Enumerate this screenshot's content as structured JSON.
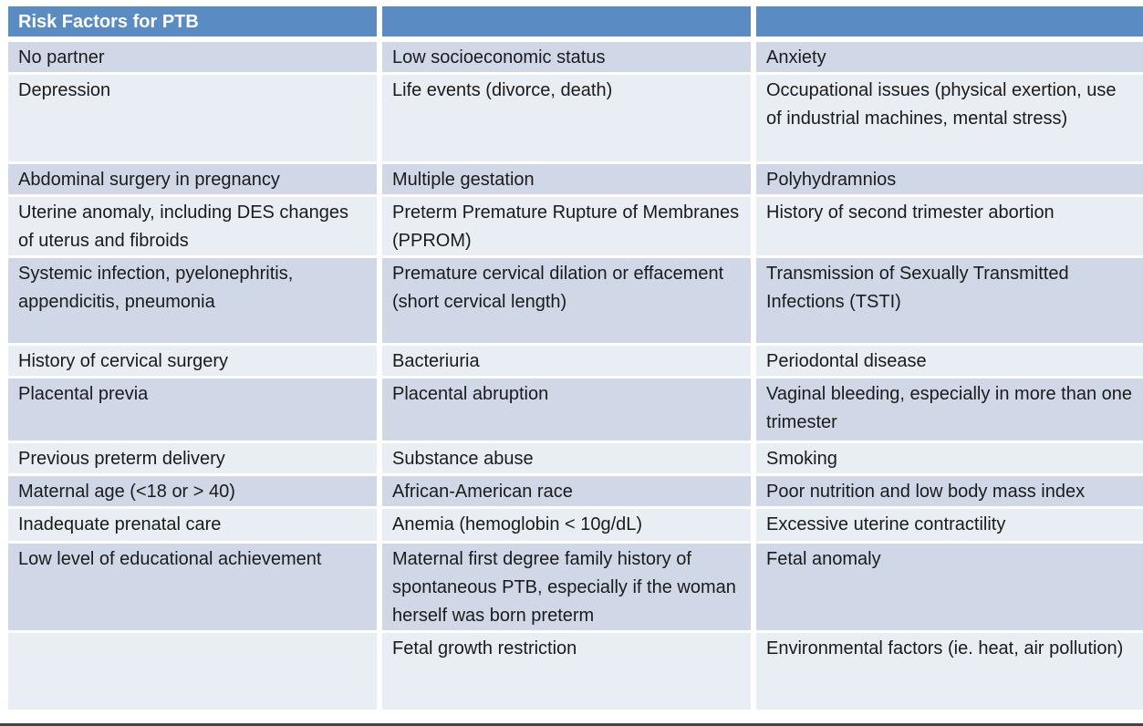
{
  "table": {
    "title": "Risk Factors for PTB",
    "header": [
      "Risk Factors for PTB",
      "",
      ""
    ],
    "rows": [
      [
        "No partner",
        "Low socioeconomic status",
        "Anxiety"
      ],
      [
        "Depression",
        "Life events (divorce, death)",
        "Occupational issues (physical exertion, use of industrial machines, mental stress)"
      ],
      [
        "Abdominal surgery in pregnancy",
        "Multiple gestation",
        "Polyhydramnios"
      ],
      [
        "Uterine anomaly, including DES changes of uterus and fibroids",
        "Preterm Premature Rupture of Membranes (PPROM)",
        "History of second trimester abortion"
      ],
      [
        "Systemic infection, pyelonephritis, appendicitis, pneumonia",
        "Premature cervical dilation or effacement (short cervical length)",
        "Transmission of Sexually Transmitted Infections (TSTI)"
      ],
      [
        "History of cervical surgery",
        "Bacteriuria",
        "Periodontal disease"
      ],
      [
        "Placental previa",
        "Placental abruption",
        "Vaginal bleeding, especially in more than one trimester"
      ],
      [
        "Previous preterm delivery",
        "Substance abuse",
        "Smoking"
      ],
      [
        "Maternal age (<18 or > 40)",
        "African-American race",
        "Poor nutrition and low body mass index"
      ],
      [
        "Inadequate prenatal care",
        "Anemia (hemoglobin < 10g/dL)",
        "Excessive uterine contractility"
      ],
      [
        "Low level of educational achievement",
        "Maternal first degree family history of spontaneous PTB, especially if the woman herself was born preterm",
        "Fetal anomaly"
      ],
      [
        "",
        "Fetal growth restriction",
        "Environmental factors (ie. heat, air pollution)"
      ]
    ],
    "colors": {
      "header_bg": "#5a8cc3",
      "header_text": "#ffffff",
      "band_dark": "#d0d8e8",
      "band_light": "#e9edf4",
      "body_text": "#1b1b1b",
      "divider": "#ffffff",
      "bottom_edge": "#454545"
    }
  }
}
